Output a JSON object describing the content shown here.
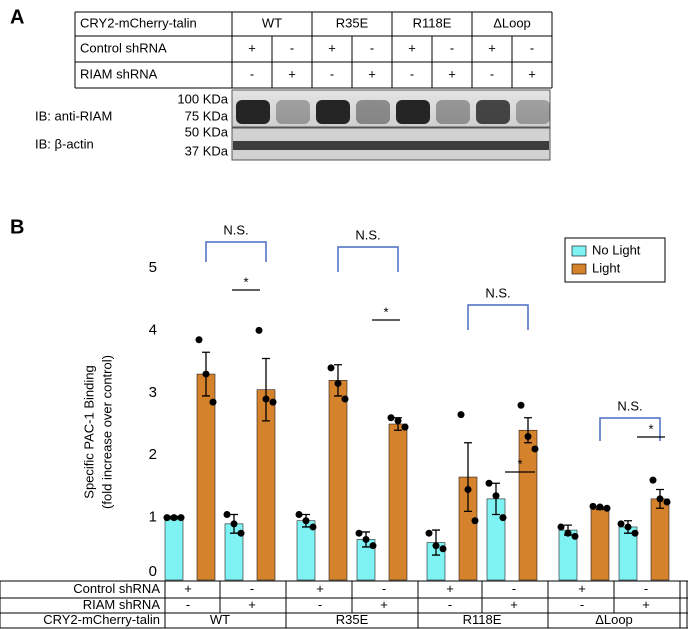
{
  "panel_a": {
    "label": "A",
    "table": {
      "rows": [
        [
          "CRY2-mCherry-talin",
          "WT",
          "R35E",
          "R118E",
          "ΔLoop"
        ],
        [
          "Control shRNA",
          "+",
          "-",
          "+",
          "-",
          "+",
          "-",
          "+",
          "-"
        ],
        [
          "RIAM shRNA",
          "-",
          "+",
          "-",
          "+",
          "-",
          "+",
          "-",
          "+"
        ]
      ]
    },
    "blots": [
      {
        "label": "IB: anti-RIAM",
        "markers": [
          "100 KDa",
          "75 KDa"
        ]
      },
      {
        "label": "IB: β-actin",
        "markers": [
          "50 KDa",
          "37 KDa"
        ]
      }
    ]
  },
  "panel_b": {
    "label": "B",
    "table": {
      "rows": [
        [
          "Control shRNA",
          "+",
          "-",
          "+",
          "-",
          "+",
          "-",
          "+",
          "-"
        ],
        [
          "RIAM shRNA",
          "-",
          "+",
          "-",
          "+",
          "-",
          "+",
          "-",
          "+"
        ],
        [
          "CRY2-mCherry-talin",
          "WT",
          "R35E",
          "R118E",
          "ΔLoop"
        ]
      ]
    }
  },
  "chart_data": {
    "type": "bar",
    "y_label": [
      "Specific PAC-1 Binding",
      "(fold increase over control)"
    ],
    "ylim": [
      0,
      5
    ],
    "yticks": [
      0,
      1,
      2,
      3,
      4,
      5
    ],
    "legend": "top-right",
    "series": [
      {
        "name": "No Light",
        "color": "#7ff3f3",
        "values": [
          1.0,
          0.9,
          0.95,
          0.65,
          0.6,
          1.3,
          0.8,
          0.85
        ],
        "errors": [
          0.02,
          0.15,
          0.1,
          0.12,
          0.2,
          0.25,
          0.08,
          0.1
        ],
        "points": [
          [
            1,
            1,
            1
          ],
          [
            1.05,
            0.9,
            0.75
          ],
          [
            1.05,
            0.95,
            0.85
          ],
          [
            0.75,
            0.65,
            0.55
          ],
          [
            0.75,
            0.55,
            0.5
          ],
          [
            1.55,
            1.35,
            1.0
          ],
          [
            0.85,
            0.75,
            0.7
          ],
          [
            0.9,
            0.85,
            0.75
          ]
        ]
      },
      {
        "name": "Light",
        "color": "#d5822c",
        "values": [
          3.3,
          3.05,
          3.2,
          2.5,
          1.65,
          2.4,
          1.15,
          1.3
        ],
        "errors": [
          0.35,
          0.5,
          0.25,
          0.1,
          0.55,
          0.2,
          0.02,
          0.15
        ],
        "points": [
          [
            3.85,
            3.3,
            2.85
          ],
          [
            4.0,
            2.9,
            2.85
          ],
          [
            3.4,
            3.15,
            2.9
          ],
          [
            2.6,
            2.55,
            2.45
          ],
          [
            2.65,
            1.45,
            0.95
          ],
          [
            2.8,
            2.3,
            2.1
          ],
          [
            1.18,
            1.17,
            1.15
          ],
          [
            1.6,
            1.3,
            1.25
          ]
        ]
      }
    ],
    "annotations": [
      "N.S.",
      "*",
      "N.S.",
      "*",
      "N.S.",
      "*",
      "N.S.",
      "*"
    ]
  }
}
